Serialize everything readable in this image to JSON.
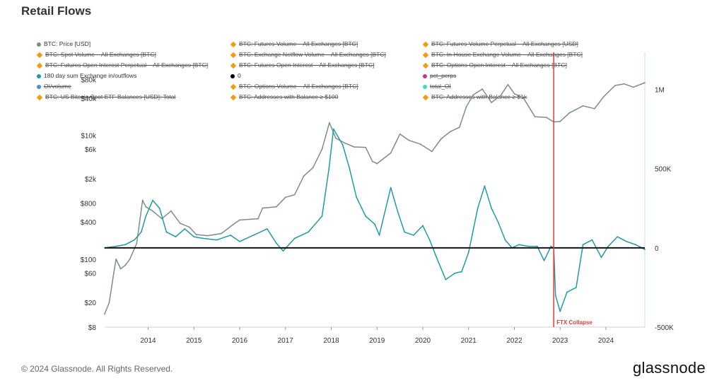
{
  "title": "Retail Flows",
  "footer": {
    "copyright": "© 2024 Glassnode. All Rights Reserved.",
    "brand": "glassnode"
  },
  "legend": [
    {
      "label": "BTC: Price [USD]",
      "color": "#7f8c8d",
      "marker": "dot",
      "active": true
    },
    {
      "label": "BTC: Futures Volume – All Exchanges [BTC]",
      "color": "#f39c12",
      "marker": "diamond",
      "active": false
    },
    {
      "label": "BTC: Futures Volume Perpetual – All Exchanges [USD]",
      "color": "#f39c12",
      "marker": "diamond",
      "active": false
    },
    {
      "label": "BTC: Spot Volume – All Exchanges [BTC]",
      "color": "#f39c12",
      "marker": "diamond",
      "active": false
    },
    {
      "label": "BTC: Exchange Netflow Volume – All Exchanges [BTC]",
      "color": "#f39c12",
      "marker": "diamond",
      "active": false
    },
    {
      "label": "BTC: In-House Exchange Volume – All Exchanges [BTC]",
      "color": "#f39c12",
      "marker": "diamond",
      "active": false
    },
    {
      "label": "BTC: Futures Open Interest Perpetual – All Exchanges [BTC]",
      "color": "#f39c12",
      "marker": "diamond",
      "active": false
    },
    {
      "label": "BTC: Futures Open Interest – All Exchanges [BTC]",
      "color": "#f39c12",
      "marker": "diamond",
      "active": false
    },
    {
      "label": "BTC: Options Open Interest – All Exchanges [BTC]",
      "color": "#f39c12",
      "marker": "diamond",
      "active": false
    },
    {
      "label": "180 day sum Exchange in/outflows",
      "color": "#1f9aa8",
      "marker": "dot",
      "active": true
    },
    {
      "label": "0",
      "color": "#000000",
      "marker": "dot",
      "active": true
    },
    {
      "label": "pct_perps",
      "color": "#c0398c",
      "marker": "dot",
      "active": false
    },
    {
      "label": "OI/volume",
      "color": "#4a90d9",
      "marker": "dot",
      "active": false
    },
    {
      "label": "BTC: Options Volume – All Exchanges [BTC]",
      "color": "#f39c12",
      "marker": "diamond",
      "active": false
    },
    {
      "label": "total_OI",
      "color": "#40d8d0",
      "marker": "dot",
      "active": false
    },
    {
      "label": "BTC: US Bitcoin Spot ETF Balances [USD]: Total",
      "color": "#f39c12",
      "marker": "diamond",
      "active": false
    },
    {
      "label": "BTC: Addresses with Balance ≥ $100",
      "color": "#f39c12",
      "marker": "diamond",
      "active": false
    },
    {
      "label": "BTC: Addresses with Balance ≥ $1k",
      "color": "#f39c12",
      "marker": "diamond",
      "active": false
    }
  ],
  "chart_data": {
    "type": "line",
    "title": "Retail Flows",
    "x_ticks": [
      "2014",
      "2015",
      "2016",
      "2017",
      "2018",
      "2019",
      "2020",
      "2021",
      "2022",
      "2023",
      "2024"
    ],
    "xlim": [
      2013.05,
      2024.85
    ],
    "y_left": {
      "scale": "log",
      "ticks": [
        "$8",
        "$20",
        "$60",
        "$100",
        "$400",
        "$800",
        "$2k",
        "$6k",
        "$10k",
        "$40k",
        "$80k"
      ],
      "tick_values": [
        8,
        20,
        60,
        100,
        400,
        800,
        2000,
        6000,
        10000,
        40000,
        80000
      ],
      "lim": [
        8,
        100000
      ]
    },
    "y_right": {
      "scale": "linear",
      "ticks": [
        "-500K",
        "0",
        "500K",
        "1M"
      ],
      "tick_values": [
        -500000,
        0,
        500000,
        1000000
      ],
      "lim": [
        -500000,
        1100000
      ]
    },
    "annotation": {
      "label": "FTX Collapse",
      "x": 2022.86,
      "color": "#e53935"
    },
    "series": [
      {
        "name": "BTC: Price [USD]",
        "axis": "left",
        "color": "#7f8c8d",
        "x": [
          2013.05,
          2013.15,
          2013.25,
          2013.3,
          2013.4,
          2013.5,
          2013.6,
          2013.75,
          2013.88,
          2013.95,
          2014.1,
          2014.3,
          2014.5,
          2014.7,
          2014.9,
          2015.05,
          2015.3,
          2015.6,
          2015.85,
          2016.0,
          2016.4,
          2016.5,
          2016.8,
          2017.0,
          2017.2,
          2017.4,
          2017.6,
          2017.8,
          2017.96,
          2018.1,
          2018.3,
          2018.5,
          2018.75,
          2018.9,
          2019.0,
          2019.3,
          2019.5,
          2019.7,
          2019.95,
          2020.2,
          2020.4,
          2020.6,
          2020.8,
          2020.95,
          2021.1,
          2021.3,
          2021.5,
          2021.7,
          2021.86,
          2022.0,
          2022.2,
          2022.45,
          2022.7,
          2022.86,
          2023.0,
          2023.2,
          2023.5,
          2023.75,
          2023.95,
          2024.2,
          2024.4,
          2024.6,
          2024.85
        ],
        "values": [
          13,
          20,
          60,
          100,
          70,
          80,
          100,
          180,
          900,
          700,
          600,
          450,
          600,
          380,
          330,
          250,
          240,
          260,
          360,
          430,
          450,
          670,
          700,
          1000,
          1100,
          2200,
          3000,
          6000,
          16000,
          9000,
          7500,
          6500,
          6400,
          3800,
          3500,
          5200,
          10500,
          8300,
          7200,
          5500,
          8800,
          11500,
          13500,
          29000,
          45000,
          56000,
          34000,
          44000,
          66000,
          47000,
          40000,
          20000,
          19500,
          16500,
          16800,
          23000,
          30000,
          27000,
          42000,
          64000,
          68000,
          60000,
          71000
        ]
      },
      {
        "name": "180 day sum Exchange in/outflows",
        "axis": "right",
        "color": "#1f9aa8",
        "x": [
          2013.05,
          2013.3,
          2013.5,
          2013.7,
          2013.85,
          2013.95,
          2014.1,
          2014.25,
          2014.4,
          2014.6,
          2014.8,
          2015.0,
          2015.2,
          2015.5,
          2015.8,
          2016.0,
          2016.3,
          2016.6,
          2016.8,
          2016.95,
          2017.2,
          2017.5,
          2017.8,
          2017.95,
          2018.05,
          2018.25,
          2018.4,
          2018.55,
          2018.75,
          2018.95,
          2019.05,
          2019.15,
          2019.3,
          2019.45,
          2019.6,
          2019.8,
          2020.0,
          2020.15,
          2020.3,
          2020.5,
          2020.7,
          2020.85,
          2021.0,
          2021.2,
          2021.35,
          2021.5,
          2021.65,
          2021.8,
          2021.95,
          2022.1,
          2022.3,
          2022.5,
          2022.65,
          2022.8,
          2022.86,
          2022.9,
          2023.0,
          2023.15,
          2023.35,
          2023.5,
          2023.7,
          2023.9,
          2024.05,
          2024.25,
          2024.45,
          2024.65,
          2024.85
        ],
        "values": [
          0,
          10000,
          20000,
          50000,
          100000,
          200000,
          300000,
          250000,
          100000,
          70000,
          120000,
          70000,
          60000,
          50000,
          80000,
          40000,
          80000,
          120000,
          30000,
          -20000,
          60000,
          100000,
          200000,
          500000,
          750000,
          650000,
          500000,
          320000,
          200000,
          150000,
          80000,
          200000,
          380000,
          230000,
          100000,
          80000,
          140000,
          50000,
          -60000,
          -200000,
          -160000,
          -150000,
          -30000,
          250000,
          390000,
          250000,
          160000,
          50000,
          0,
          20000,
          10000,
          10000,
          -80000,
          10000,
          0,
          -300000,
          -400000,
          -280000,
          -250000,
          20000,
          50000,
          -60000,
          10000,
          70000,
          40000,
          20000,
          -10000
        ]
      },
      {
        "name": "0",
        "axis": "right",
        "color": "#000000",
        "x": [
          2013.05,
          2024.85
        ],
        "values": [
          0,
          0
        ]
      }
    ]
  }
}
